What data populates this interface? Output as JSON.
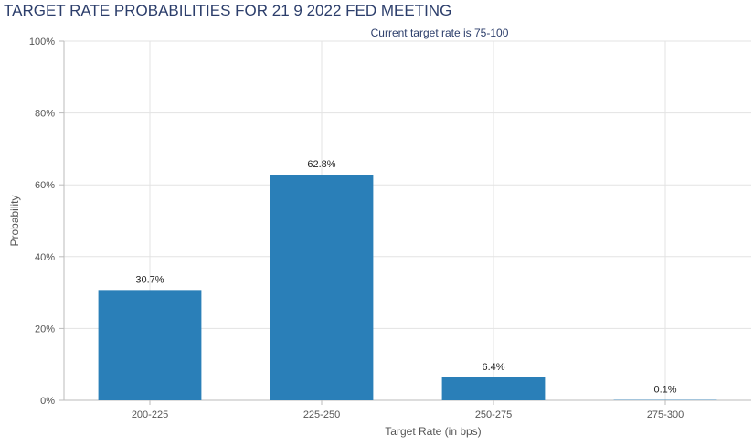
{
  "header": {
    "title": "TARGET RATE PROBABILITIES FOR 21 9 2022 FED MEETING"
  },
  "colors": {
    "bar": "#2a7fb8",
    "grid": "#e3e3e3",
    "axis": "#bbbbbb",
    "text": "#555555",
    "subtitle": "#2c3e6b"
  },
  "chart_data": {
    "type": "bar",
    "title": "TARGET RATE PROBABILITIES FOR 21 9 2022 FED MEETING",
    "subtitle": "Current target rate is 75-100",
    "xlabel": "Target Rate (in bps)",
    "ylabel": "Probability",
    "categories": [
      "200-225",
      "225-250",
      "250-275",
      "275-300"
    ],
    "values": [
      30.7,
      62.8,
      6.4,
      0.1
    ],
    "data_labels": [
      "30.7%",
      "62.8%",
      "6.4%",
      "0.1%"
    ],
    "ylim": [
      0,
      100
    ],
    "yticks": [
      0,
      20,
      40,
      60,
      80,
      100
    ],
    "ytick_labels": [
      "0%",
      "20%",
      "40%",
      "60%",
      "80%",
      "100%"
    ],
    "grid": true,
    "legend": false
  }
}
